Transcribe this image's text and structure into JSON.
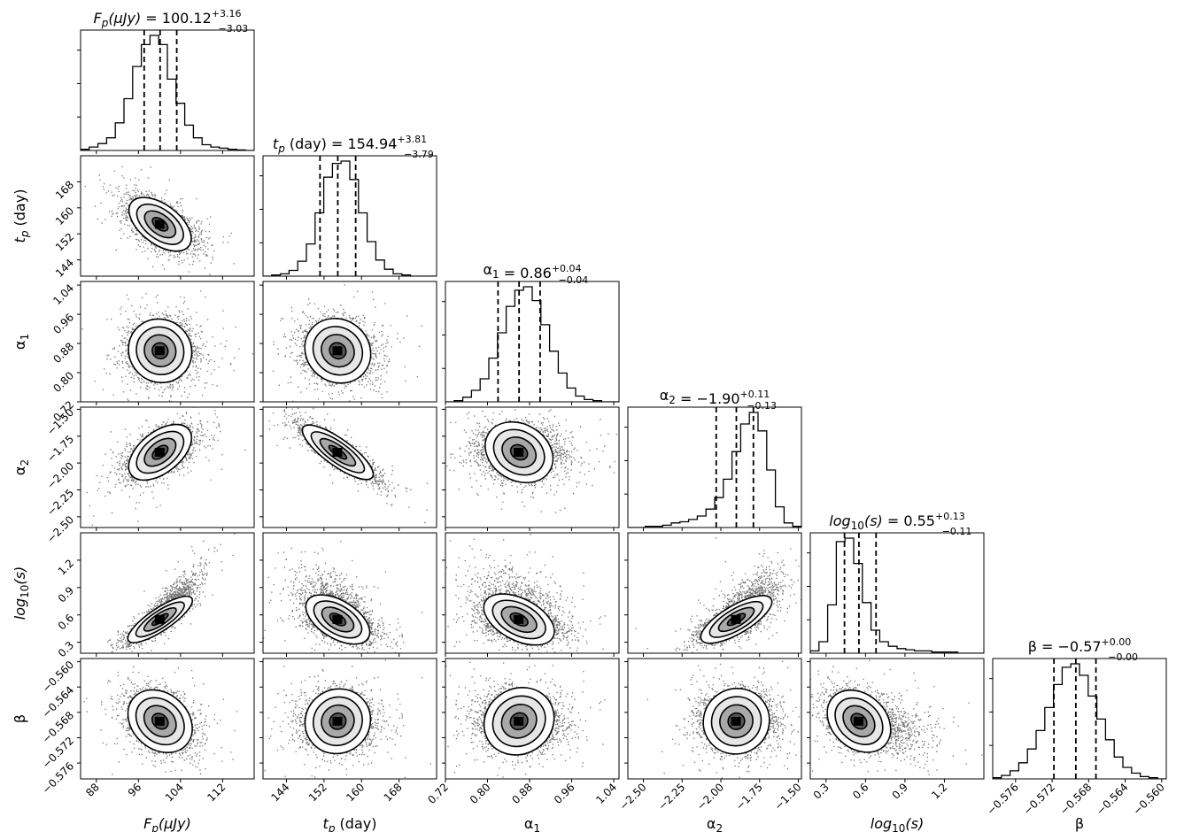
{
  "chart_data": {
    "type": "corner",
    "parameters": [
      {
        "key": "Fp",
        "axis_label": "F_p(μJy)",
        "title": {
          "name": "F_p(μJy)",
          "median": "100.12",
          "plus": "+3.16",
          "minus": "−3.03"
        },
        "range": [
          85,
          118
        ],
        "ticks": [
          88,
          96,
          104,
          112
        ],
        "tick_labels": [
          "88",
          "96",
          "104",
          "112"
        ],
        "quantiles": [
          97.09,
          100.12,
          103.28
        ],
        "median": 100.12,
        "sigma": 3.1,
        "hist": [
          0.01,
          0.03,
          0.06,
          0.11,
          0.24,
          0.45,
          0.73,
          0.92,
          1.0,
          0.92,
          0.62,
          0.41,
          0.22,
          0.11,
          0.05,
          0.03,
          0.02,
          0.01,
          0.005,
          0.0
        ]
      },
      {
        "key": "tp",
        "axis_label": "t_p (day)",
        "title": {
          "name": "t_p (day)",
          "median": "154.94",
          "plus": "+3.81",
          "minus": "−3.79"
        },
        "range": [
          139,
          176
        ],
        "ticks": [
          144,
          152,
          160,
          168
        ],
        "tick_labels": [
          "144",
          "152",
          "160",
          "168"
        ],
        "quantiles": [
          151.15,
          154.94,
          158.75
        ],
        "median": 154.94,
        "sigma": 3.8,
        "hist": [
          0.0,
          0.01,
          0.02,
          0.05,
          0.13,
          0.28,
          0.55,
          0.86,
          0.98,
          1.0,
          0.84,
          0.55,
          0.3,
          0.14,
          0.06,
          0.02,
          0.01,
          0.0,
          0.0,
          0.0
        ]
      },
      {
        "key": "a1",
        "axis_label": "α_1",
        "title": {
          "name": "α_1",
          "median": "0.86",
          "plus": "+0.04",
          "minus": "−0.04"
        },
        "range": [
          0.72,
          1.05
        ],
        "ticks": [
          0.72,
          0.8,
          0.88,
          0.96,
          1.04
        ],
        "tick_labels": [
          "0.72",
          "0.80",
          "0.88",
          "0.96",
          "1.04"
        ],
        "quantiles": [
          0.82,
          0.86,
          0.9
        ],
        "median": 0.86,
        "sigma": 0.04,
        "hist": [
          0.0,
          0.01,
          0.04,
          0.1,
          0.2,
          0.38,
          0.6,
          0.83,
          0.97,
          1.0,
          0.88,
          0.67,
          0.44,
          0.25,
          0.12,
          0.05,
          0.02,
          0.01,
          0.0,
          0.0
        ]
      },
      {
        "key": "a2",
        "axis_label": "α_2",
        "title": {
          "name": "α_2",
          "median": "−1.90",
          "plus": "+0.11",
          "minus": "−0.13"
        },
        "range": [
          -2.6,
          -1.48
        ],
        "ticks": [
          -2.5,
          -2.25,
          -2.0,
          -1.75,
          -1.5
        ],
        "tick_labels": [
          "−2.50",
          "−2.25",
          "−2.00",
          "−1.75",
          "−1.50"
        ],
        "quantiles": [
          -2.03,
          -1.9,
          -1.79
        ],
        "median": -1.9,
        "sigma": 0.12,
        "hist": [
          0.0,
          0.0,
          0.01,
          0.01,
          0.02,
          0.04,
          0.05,
          0.07,
          0.1,
          0.16,
          0.26,
          0.42,
          0.66,
          0.9,
          1.0,
          0.84,
          0.5,
          0.18,
          0.04,
          0.01
        ]
      },
      {
        "key": "logs",
        "axis_label": "log_10(s)",
        "title": {
          "name": "log_10(s)",
          "median": "0.55",
          "plus": "+0.13",
          "minus": "−0.11"
        },
        "range": [
          0.18,
          1.5
        ],
        "ticks": [
          0.3,
          0.6,
          0.9,
          1.2
        ],
        "tick_labels": [
          "0.3",
          "0.6",
          "0.9",
          "1.2"
        ],
        "quantiles": [
          0.44,
          0.55,
          0.68
        ],
        "median": 0.55,
        "sigma": 0.12,
        "hist": [
          0.02,
          0.1,
          0.42,
          0.97,
          1.0,
          0.78,
          0.44,
          0.2,
          0.1,
          0.06,
          0.04,
          0.03,
          0.02,
          0.02,
          0.01,
          0.01,
          0.01,
          0.0,
          0.0,
          0.0
        ]
      },
      {
        "key": "beta",
        "axis_label": "β",
        "title": {
          "name": "β",
          "median": "−0.57",
          "plus": "+0.00",
          "minus": "−0.00"
        },
        "range": [
          -0.5785,
          -0.5595
        ],
        "ticks": [
          -0.576,
          -0.572,
          -0.568,
          -0.564,
          -0.56
        ],
        "tick_labels": [
          "−0.576",
          "−0.572",
          "−0.568",
          "−0.564",
          "−0.560"
        ],
        "quantiles": [
          -0.5718,
          -0.5694,
          -0.5672
        ],
        "median": -0.5694,
        "sigma": 0.0023,
        "hist": [
          0.01,
          0.03,
          0.07,
          0.14,
          0.26,
          0.42,
          0.62,
          0.82,
          0.97,
          1.0,
          0.9,
          0.72,
          0.52,
          0.34,
          0.19,
          0.1,
          0.05,
          0.02,
          0.01,
          0.0
        ]
      }
    ],
    "correlations": {
      "Fp-tp": -0.55,
      "Fp-a1": 0.0,
      "tp-a1": -0.1,
      "Fp-a2": 0.55,
      "tp-a2": -0.88,
      "a1-a2": -0.05,
      "Fp-logs": 0.88,
      "tp-logs": -0.45,
      "a1-logs": -0.3,
      "a2-logs": 0.75,
      "Fp-beta": -0.3,
      "tp-beta": 0.05,
      "a1-beta": 0.0,
      "a2-beta": 0.0,
      "logs-beta": -0.35
    },
    "contour_levels_sigma": [
      0.5,
      1.0,
      1.5,
      2.0
    ],
    "median_line_style": "dashed",
    "colors": {
      "ink": "#000000",
      "fill_light": "#ffffff",
      "fill_dark": "#000000"
    }
  }
}
